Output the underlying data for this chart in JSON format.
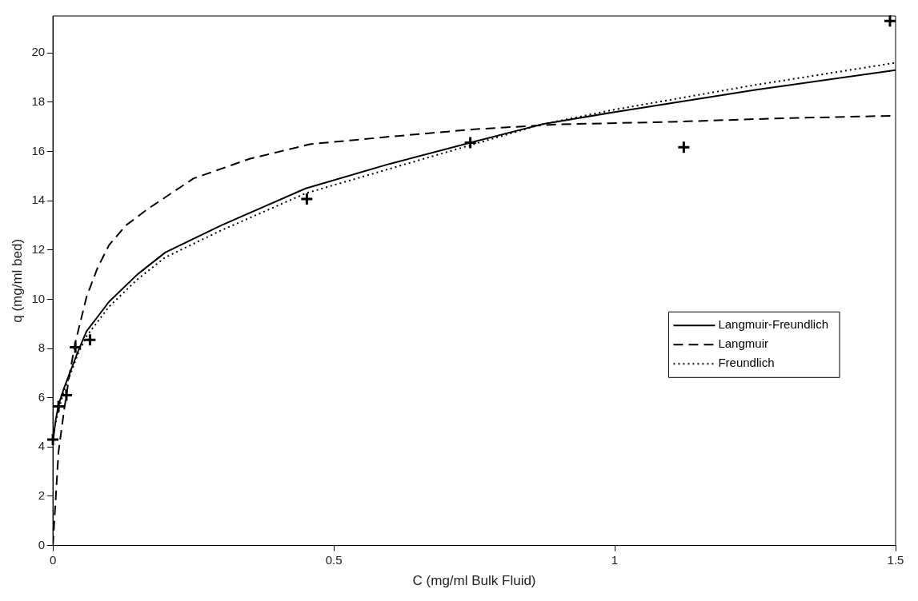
{
  "chart_data": {
    "type": "line",
    "xlabel": "C (mg/ml Bulk Fluid)",
    "ylabel": "q (mg/ml bed)",
    "xlim": [
      0,
      1.5
    ],
    "xticks": [
      0,
      0.5,
      1,
      1.5
    ],
    "ylim": [
      0,
      21.5
    ],
    "yticks": [
      0,
      2,
      4,
      6,
      8,
      10,
      12,
      14,
      16,
      18,
      20
    ],
    "grid": false,
    "legend": "right",
    "series": [
      {
        "type": "scatter",
        "marker": "cross",
        "color": "#000000",
        "x": [
          0,
          0.01,
          0.024,
          0.04,
          0.066,
          0.452,
          0.743,
          1.123,
          1.49
        ],
        "values": [
          4.3,
          5.65,
          6.1,
          8.05,
          8.35,
          14.07,
          16.36,
          16.17,
          21.3
        ]
      },
      {
        "name": "Langmuir-Freundlich",
        "type": "line",
        "line_style": "solid",
        "marker": "none",
        "color": "#000000",
        "x": [
          0,
          0.005,
          0.01,
          0.02,
          0.03,
          0.045,
          0.06,
          0.08,
          0.1,
          0.15,
          0.2,
          0.3,
          0.45,
          0.6,
          0.75,
          0.87,
          1,
          1.25,
          1.5
        ],
        "values": [
          4.2,
          5.1,
          5.7,
          6.4,
          7,
          7.9,
          8.7,
          9.3,
          9.9,
          11,
          11.9,
          13,
          14.5,
          15.5,
          16.4,
          17.1,
          17.6,
          18.5,
          19.3
        ]
      },
      {
        "name": "Langmuir",
        "type": "line",
        "line_style": "dashed",
        "marker": "none",
        "color": "#000000",
        "x": [
          0,
          0.005,
          0.01,
          0.02,
          0.03,
          0.04,
          0.06,
          0.08,
          0.1,
          0.13,
          0.168,
          0.25,
          0.35,
          0.459,
          0.6,
          0.75,
          0.9,
          1.1,
          1.3,
          1.5
        ],
        "values": [
          0,
          1.9,
          3.8,
          5.5,
          7,
          8.25,
          10.1,
          11.3,
          12.2,
          13,
          13.65,
          14.9,
          15.7,
          16.3,
          16.6,
          16.9,
          17.1,
          17.2,
          17.35,
          17.45
        ]
      },
      {
        "name": "Freundlich",
        "type": "line",
        "line_style": "dotted",
        "marker": "none",
        "color": "#000000",
        "x": [
          0.005,
          0.01,
          0.02,
          0.03,
          0.045,
          0.06,
          0.08,
          0.1,
          0.15,
          0.2,
          0.3,
          0.45,
          0.6,
          0.75,
          0.87,
          1,
          1.25,
          1.5
        ],
        "values": [
          5,
          5.5,
          6.3,
          6.9,
          7.8,
          8.5,
          9.1,
          9.7,
          10.8,
          11.7,
          12.8,
          14.3,
          15.3,
          16.3,
          17.1,
          17.7,
          18.7,
          19.6
        ]
      }
    ]
  }
}
